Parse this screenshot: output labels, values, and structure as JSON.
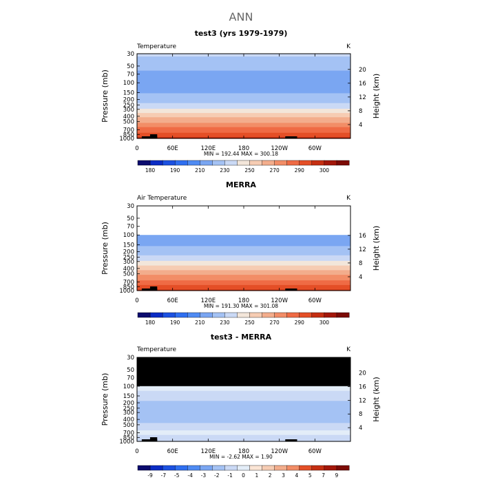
{
  "figure": {
    "title": "ANN"
  },
  "colors": {
    "bg_missing": "#000000",
    "temp_scale": [
      "#0b0b6e",
      "#0b2cc4",
      "#1c51e1",
      "#2f6ff0",
      "#4f8bf3",
      "#7aa6f2",
      "#a4c2f4",
      "#cad9f5",
      "#f3e6da",
      "#f6ccb3",
      "#f3ad8c",
      "#f28d67",
      "#ef6b45",
      "#e44f27",
      "#c52f12",
      "#a3170a",
      "#7c0b05"
    ],
    "diff_scale": [
      "#0b0b6e",
      "#0b2cc4",
      "#1c51e1",
      "#2f6ff0",
      "#4f8bf3",
      "#7aa6f2",
      "#a4c2f4",
      "#cad9f5",
      "#e3edf8",
      "#fbe5d5",
      "#f6ccb3",
      "#f3ad8c",
      "#f28d67",
      "#e44f27",
      "#c52f12",
      "#a3170a",
      "#7c0b05"
    ]
  },
  "chart_data": [
    {
      "type": "heatmap",
      "panel_title": "test3 (yrs 1979-1979)",
      "variable_label": "Temperature",
      "units": "K",
      "ylabel": "Pressure (mb)",
      "y2label": "Height (km)",
      "y_ticks": [
        "30",
        "50",
        "70",
        "100",
        "150",
        "200",
        "250",
        "300",
        "400",
        "500",
        "700",
        "850",
        "1000"
      ],
      "y2_ticks": [
        "20",
        "16",
        "12",
        "8",
        "4"
      ],
      "x_ticks": [
        "0",
        "60E",
        "120E",
        "180",
        "120W",
        "60W"
      ],
      "x_values": [
        0,
        60,
        120,
        180,
        240,
        300
      ],
      "top_pressure": 30,
      "stats": "MIN = 192.44   MAX = 300.18",
      "colorbar_labels": [
        "180",
        "190",
        "210",
        "230",
        "250",
        "270",
        "290",
        "300"
      ],
      "colorbar_levels": [
        175,
        180,
        185,
        190,
        200,
        210,
        220,
        230,
        240,
        250,
        260,
        270,
        280,
        290,
        295,
        300
      ],
      "profile": [
        {
          "p": 30,
          "v": 222
        },
        {
          "p": 50,
          "v": 214
        },
        {
          "p": 70,
          "v": 207
        },
        {
          "p": 100,
          "v": 203
        },
        {
          "p": 150,
          "v": 209
        },
        {
          "p": 200,
          "v": 215
        },
        {
          "p": 250,
          "v": 222
        },
        {
          "p": 300,
          "v": 232
        },
        {
          "p": 400,
          "v": 247
        },
        {
          "p": 500,
          "v": 258
        },
        {
          "p": 700,
          "v": 274
        },
        {
          "p": 850,
          "v": 284
        },
        {
          "p": 1000,
          "v": 292
        }
      ]
    },
    {
      "type": "heatmap",
      "panel_title": "MERRA",
      "variable_label": "Air Temperature",
      "units": "K",
      "ylabel": "Pressure (mb)",
      "y2label": "Height (km)",
      "y_ticks": [
        "30",
        "50",
        "70",
        "100",
        "150",
        "200",
        "250",
        "300",
        "400",
        "500",
        "700",
        "850",
        "1000"
      ],
      "y2_ticks": [
        "16",
        "12",
        "8",
        "4"
      ],
      "x_ticks": [
        "0",
        "60E",
        "120E",
        "180",
        "120W",
        "60W"
      ],
      "x_values": [
        0,
        60,
        120,
        180,
        240,
        300
      ],
      "top_pressure": 100,
      "stats": "MIN = 191.30   MAX = 301.08",
      "colorbar_labels": [
        "180",
        "190",
        "210",
        "230",
        "250",
        "270",
        "290",
        "300"
      ],
      "colorbar_levels": [
        175,
        180,
        185,
        190,
        200,
        210,
        220,
        230,
        240,
        250,
        260,
        270,
        280,
        290,
        295,
        300
      ],
      "profile": [
        {
          "p": 100,
          "v": 203
        },
        {
          "p": 150,
          "v": 209
        },
        {
          "p": 200,
          "v": 215
        },
        {
          "p": 250,
          "v": 222
        },
        {
          "p": 300,
          "v": 232
        },
        {
          "p": 400,
          "v": 247
        },
        {
          "p": 500,
          "v": 258
        },
        {
          "p": 700,
          "v": 274
        },
        {
          "p": 850,
          "v": 284
        },
        {
          "p": 1000,
          "v": 292
        }
      ]
    },
    {
      "type": "heatmap",
      "panel_title": "test3 - MERRA",
      "variable_label": "Temperature",
      "units": "K",
      "ylabel": "Pressure (mb)",
      "y2label": "Height (km)",
      "y_ticks": [
        "30",
        "50",
        "70",
        "100",
        "150",
        "200",
        "250",
        "300",
        "400",
        "500",
        "700",
        "850",
        "1000"
      ],
      "y2_ticks": [
        "20",
        "16",
        "12",
        "8",
        "4"
      ],
      "x_ticks": [
        "0",
        "60E",
        "120E",
        "180",
        "120W",
        "60W"
      ],
      "x_values": [
        0,
        60,
        120,
        180,
        240,
        300
      ],
      "top_pressure": 100,
      "missing_above": 100,
      "stats": "MIN =  -2.62   MAX =   1.90",
      "colorbar_labels": [
        "-9",
        "-7",
        "-5",
        "-4",
        "-3",
        "-2",
        "-1",
        "0",
        "1",
        "2",
        "3",
        "4",
        "5",
        "7",
        "9"
      ],
      "colorbar_levels": [
        -9,
        -7,
        -5,
        -4,
        -3,
        -2,
        -1,
        0,
        1,
        2,
        3,
        4,
        5,
        7,
        9
      ],
      "profile": [
        {
          "p": 100,
          "v": 0.5
        },
        {
          "p": 150,
          "v": -0.5
        },
        {
          "p": 200,
          "v": -1.2
        },
        {
          "p": 250,
          "v": -1.4
        },
        {
          "p": 300,
          "v": -1.8
        },
        {
          "p": 400,
          "v": -1.3
        },
        {
          "p": 500,
          "v": -0.8
        },
        {
          "p": 700,
          "v": 0.4
        },
        {
          "p": 850,
          "v": -0.6
        },
        {
          "p": 1000,
          "v": -0.8
        }
      ]
    }
  ]
}
